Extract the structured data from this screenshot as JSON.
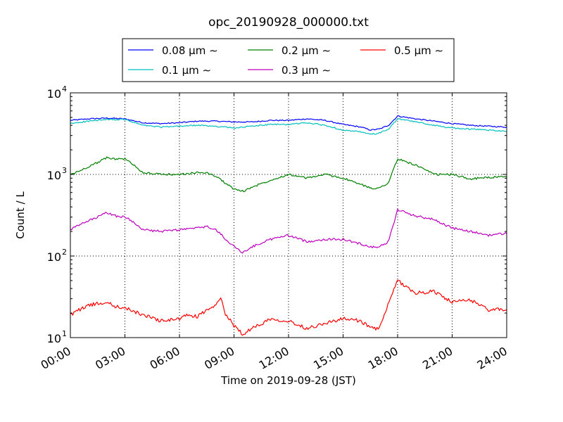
{
  "chart_data": {
    "type": "line",
    "title": "opc_20190928_000000.txt",
    "xlabel": "Time on 2019-09-28 (JST)",
    "ylabel": "Count / L",
    "x_unit": "hours",
    "xlim": [
      0,
      24
    ],
    "ylim": [
      10,
      10000
    ],
    "y_scale": "log",
    "grid": true,
    "legend_position": "top-center, outside plot",
    "x_ticks": [
      0,
      3,
      6,
      9,
      12,
      15,
      18,
      21,
      24
    ],
    "x_tick_labels": [
      "00:00",
      "03:00",
      "06:00",
      "09:00",
      "12:00",
      "15:00",
      "18:00",
      "21:00",
      "24:00"
    ],
    "y_ticks": [
      10,
      100,
      1000,
      10000
    ],
    "y_tick_labels": [
      {
        "base": "10",
        "exp": "1"
      },
      {
        "base": "10",
        "exp": "2"
      },
      {
        "base": "10",
        "exp": "3"
      },
      {
        "base": "10",
        "exp": "4"
      }
    ],
    "legend": [
      {
        "label": "0.08 μm ∼",
        "color": "#0000ff"
      },
      {
        "label": "0.2 μm ∼",
        "color": "#008000"
      },
      {
        "label": "0.5 μm ∼",
        "color": "#ff0000"
      },
      {
        "label": "0.1 μm ∼",
        "color": "#00bfbf"
      },
      {
        "label": "0.3 μm ∼",
        "color": "#bf00bf"
      }
    ],
    "series": [
      {
        "name": "0.08 μm ∼",
        "color": "#0000ff",
        "x": [
          0,
          1,
          2,
          3,
          4,
          5,
          6,
          7,
          8,
          9,
          10,
          11,
          12,
          13,
          14,
          15,
          16,
          16.5,
          17,
          17.5,
          18,
          19,
          20,
          21,
          22,
          23,
          24
        ],
        "y": [
          4600,
          4800,
          4900,
          4800,
          4300,
          4200,
          4300,
          4500,
          4500,
          4400,
          4400,
          4600,
          4600,
          4800,
          4600,
          4100,
          3800,
          3500,
          3600,
          4000,
          5200,
          4800,
          4500,
          4200,
          4000,
          3900,
          3800
        ]
      },
      {
        "name": "0.1 μm ∼",
        "color": "#00bfbf",
        "x": [
          0,
          1,
          2,
          3,
          4,
          5,
          6,
          7,
          8,
          9,
          10,
          11,
          12,
          13,
          14,
          15,
          16,
          16.5,
          17,
          17.5,
          18,
          19,
          20,
          21,
          22,
          23,
          24
        ],
        "y": [
          4200,
          4500,
          4700,
          4700,
          4000,
          3800,
          3900,
          4000,
          3900,
          3700,
          3900,
          4100,
          4100,
          4300,
          4000,
          3500,
          3300,
          3100,
          3200,
          3600,
          4800,
          4400,
          4000,
          3700,
          3600,
          3500,
          3400
        ]
      },
      {
        "name": "0.2 μm ∼",
        "color": "#008000",
        "x": [
          0,
          0.5,
          1,
          1.5,
          2,
          2.5,
          3,
          3.5,
          4,
          5,
          6,
          7,
          7.5,
          8,
          9,
          9.5,
          10,
          11,
          12,
          13,
          14,
          15,
          16,
          16.5,
          17,
          17.5,
          18,
          19,
          20,
          21,
          22,
          23,
          24
        ],
        "y": [
          1000,
          1100,
          1250,
          1400,
          1600,
          1550,
          1550,
          1300,
          1050,
          1000,
          1000,
          1050,
          1050,
          950,
          660,
          620,
          700,
          850,
          1000,
          900,
          1000,
          900,
          750,
          680,
          680,
          800,
          1550,
          1300,
          1000,
          1000,
          880,
          920,
          930
        ]
      },
      {
        "name": "0.3 μm ∼",
        "color": "#bf00bf",
        "x": [
          0,
          0.5,
          1,
          1.5,
          2,
          2.5,
          3,
          3.5,
          4,
          5,
          6,
          7,
          7.5,
          8,
          9,
          9.5,
          10,
          11,
          12,
          13,
          14,
          15,
          16,
          16.5,
          17,
          17.5,
          18,
          19,
          20,
          21,
          22,
          23,
          24
        ],
        "y": [
          210,
          240,
          270,
          300,
          340,
          310,
          300,
          260,
          210,
          200,
          210,
          220,
          230,
          210,
          130,
          110,
          130,
          160,
          180,
          150,
          160,
          160,
          140,
          130,
          130,
          150,
          370,
          310,
          280,
          220,
          200,
          180,
          190
        ]
      },
      {
        "name": "0.5 μm ∼",
        "color": "#ff0000",
        "x": [
          0,
          0.5,
          1,
          1.5,
          2,
          2.5,
          3,
          4,
          5,
          6,
          6.5,
          7,
          7.5,
          8,
          8.25,
          8.5,
          9,
          9.5,
          10,
          11,
          12,
          13,
          14,
          15,
          16,
          16.5,
          17,
          17.5,
          18,
          19,
          20,
          21,
          22,
          23,
          24
        ],
        "y": [
          19,
          22,
          25,
          26,
          27,
          24,
          23,
          19,
          16,
          17,
          19,
          18,
          22,
          24,
          32,
          20,
          14,
          11,
          13,
          17,
          16,
          13,
          15,
          17,
          16,
          13,
          13,
          26,
          50,
          35,
          37,
          27,
          29,
          22,
          22
        ]
      }
    ]
  }
}
